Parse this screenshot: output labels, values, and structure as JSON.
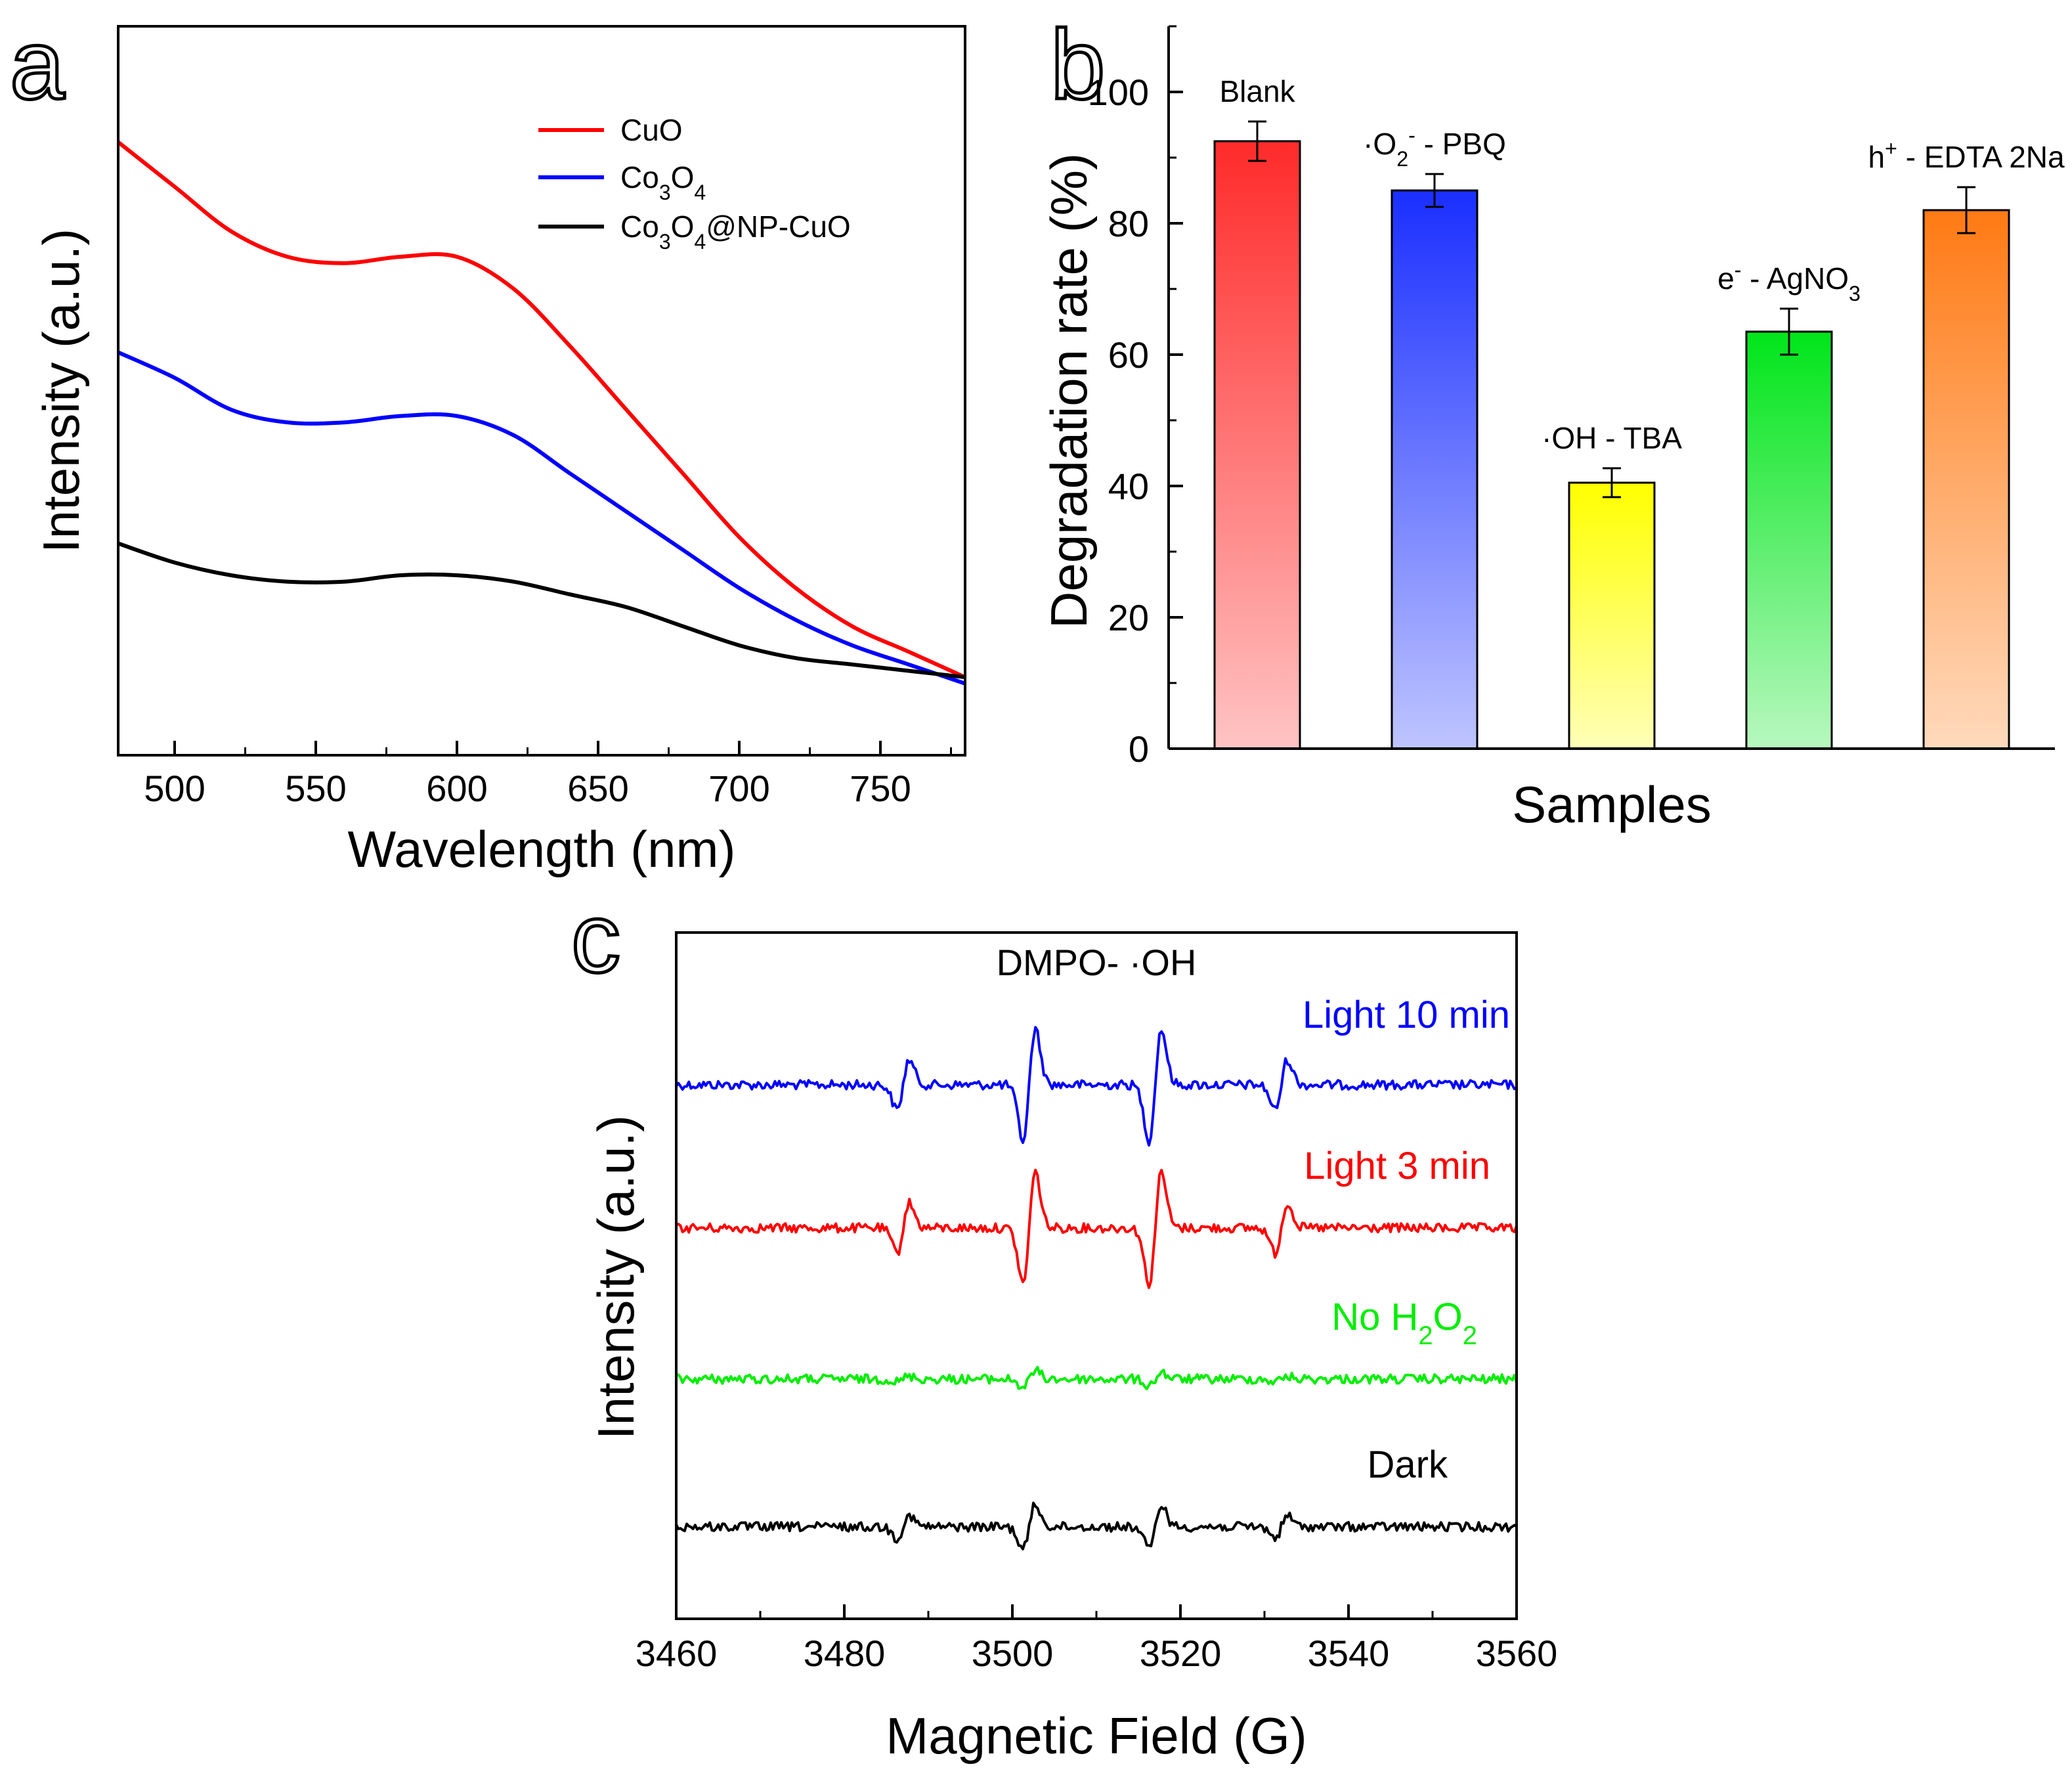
{
  "figure": {
    "panel_labels": [
      "a",
      "b",
      "c"
    ]
  },
  "chart_data": [
    {
      "panel": "a",
      "type": "line",
      "xlabel": "Wavelength (nm)",
      "ylabel": "Intensity (a.u.)",
      "xlim": [
        480,
        780
      ],
      "ylim": [
        0,
        1
      ],
      "xticks": [
        500,
        550,
        600,
        650,
        700,
        750
      ],
      "yticks_shown": false,
      "legend_position": "top-right",
      "x": [
        480,
        500,
        520,
        540,
        560,
        580,
        600,
        620,
        640,
        660,
        680,
        700,
        720,
        740,
        760,
        780
      ],
      "series": [
        {
          "name": "CuO",
          "legend_text": "CuO",
          "color": "#ff0000",
          "values": [
            0.88,
            0.81,
            0.74,
            0.7,
            0.69,
            0.7,
            0.7,
            0.65,
            0.56,
            0.46,
            0.36,
            0.26,
            0.18,
            0.12,
            0.08,
            0.04
          ]
        },
        {
          "name": "Co3O4",
          "legend_text": "Co3O4",
          "color": "#0000ff",
          "values": [
            0.55,
            0.51,
            0.46,
            0.44,
            0.44,
            0.45,
            0.45,
            0.42,
            0.36,
            0.3,
            0.24,
            0.18,
            0.13,
            0.09,
            0.06,
            0.03
          ]
        },
        {
          "name": "Co3O4@NP-CuO",
          "legend_text": "Co3O4@NP-CuO",
          "color": "#000000",
          "values": [
            0.25,
            0.22,
            0.2,
            0.19,
            0.19,
            0.2,
            0.2,
            0.19,
            0.17,
            0.15,
            0.12,
            0.09,
            0.07,
            0.06,
            0.05,
            0.04
          ]
        }
      ]
    },
    {
      "panel": "b",
      "type": "bar",
      "xlabel": "Samples",
      "ylabel": "Degradation rate (%)",
      "ylim": [
        0,
        110
      ],
      "yticks": [
        0,
        20,
        40,
        60,
        80,
        100
      ],
      "categories": [
        "Blank",
        "·O2- - PBQ",
        "·OH - TBA",
        "e- - AgNO3",
        "h+ - EDTA 2Na"
      ],
      "values": [
        92.5,
        85,
        40.5,
        63.5,
        82
      ],
      "errors": [
        3,
        2.5,
        2.2,
        3.5,
        3.5
      ],
      "colors": [
        "#ff2a2a",
        "#1a2fff",
        "#ffff00",
        "#00e51a",
        "#ff7a14"
      ],
      "bar_labels": [
        {
          "text": "Blank"
        },
        {
          "text": "·O",
          "sub": "2",
          "sup": "-",
          "tail": " - PBQ"
        },
        {
          "text": "·OH - TBA"
        },
        {
          "text": "e",
          "sup": "-",
          "tail": " - AgNO",
          "sub": "3"
        },
        {
          "text": "h",
          "sup": "+",
          "tail": " - EDTA 2Na"
        }
      ]
    },
    {
      "panel": "c",
      "type": "line",
      "title": "DMPO- ·OH",
      "xlabel": "Magnetic Field (G)",
      "ylabel": "Intensity (a.u.)",
      "xlim": [
        3460,
        3560
      ],
      "xticks": [
        3460,
        3480,
        3500,
        3520,
        3540,
        3560
      ],
      "peak_centers_G": [
        3487,
        3502,
        3517,
        3532
      ],
      "series": [
        {
          "name": "Light 10 min",
          "color": "#0000ff",
          "relative_peak_amplitudes": [
            0.45,
            1.0,
            1.0,
            0.45
          ]
        },
        {
          "name": "Light 3 min",
          "color": "#ff0000",
          "relative_peak_amplitudes": [
            0.45,
            1.0,
            1.0,
            0.45
          ]
        },
        {
          "name": "No H2O2",
          "legend_text": "No H2O2",
          "color": "#00ee00",
          "relative_peak_amplitudes": [
            0.05,
            0.15,
            0.12,
            0.05
          ]
        },
        {
          "name": "Dark",
          "color": "#000000",
          "relative_peak_amplitudes": [
            0.2,
            0.4,
            0.4,
            0.2
          ]
        }
      ]
    }
  ]
}
